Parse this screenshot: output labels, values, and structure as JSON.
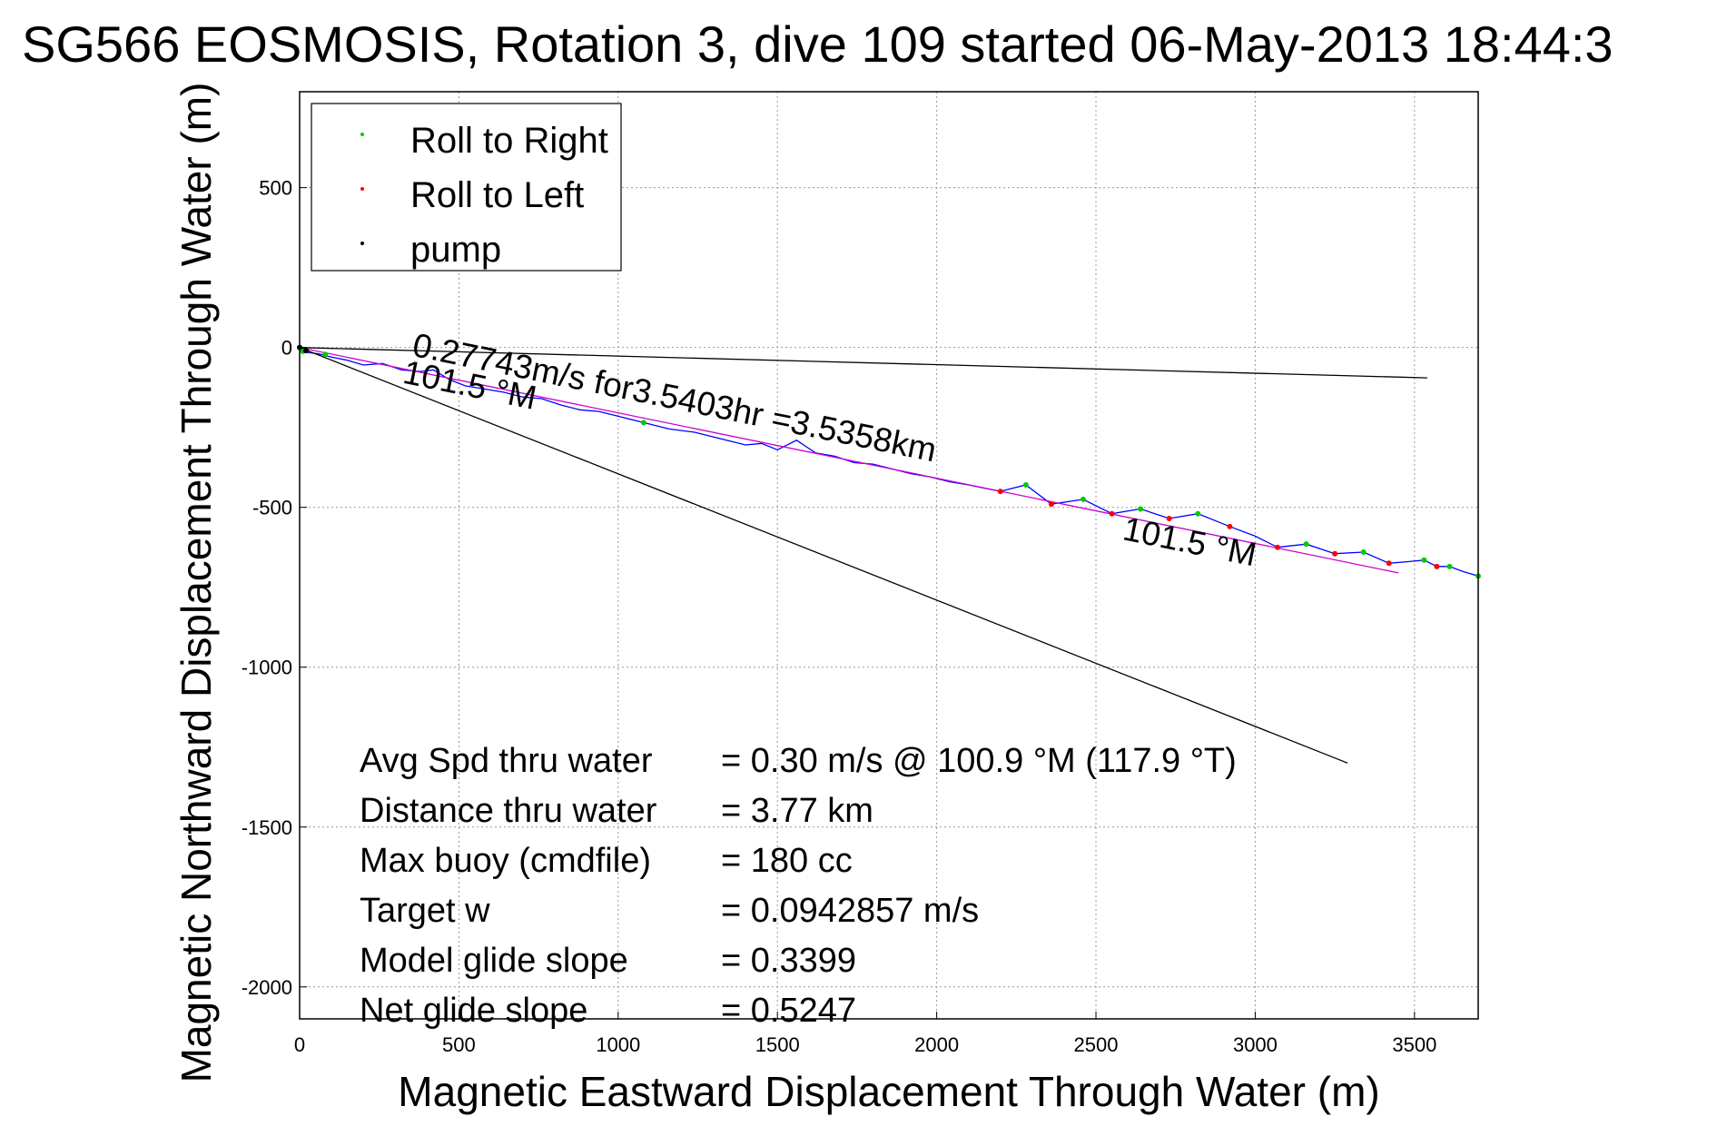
{
  "chart_data": {
    "type": "line",
    "title": "SG566 EOSMOSIS, Rotation 3, dive 109 started 06-May-2013 18:44:3",
    "xlabel": "Magnetic Eastward Displacement Through Water (m)",
    "ylabel": "Magnetic Northward Displacement Through Water (m)",
    "xlim": [
      0,
      3700
    ],
    "ylim": [
      -2100,
      800
    ],
    "xticks": [
      0,
      500,
      1000,
      1500,
      2000,
      2500,
      3000,
      3500
    ],
    "yticks": [
      500,
      0,
      -500,
      -1000,
      -1500,
      -2000
    ],
    "xtick_labels": [
      "0",
      "500",
      "1000",
      "1500",
      "2000",
      "2500",
      "3000",
      "3500"
    ],
    "ytick_labels": [
      "500",
      "0",
      "-500",
      "-1000",
      "-1500",
      "-2000"
    ],
    "grid": true,
    "legend": {
      "position": "top-left",
      "entries": [
        {
          "label": "Roll to Right",
          "color": "#00cc00"
        },
        {
          "label": "Roll to Left",
          "color": "#ff0000"
        },
        {
          "label": "pump",
          "color": "#000000"
        }
      ]
    },
    "series": [
      {
        "color": "#0000ff",
        "x": [
          0,
          20,
          60,
          100,
          150,
          200,
          260,
          320,
          380,
          420,
          470,
          520,
          580,
          640,
          700,
          760,
          820,
          880,
          940,
          1000,
          1080,
          1160,
          1240,
          1320,
          1400,
          1450,
          1500,
          1560,
          1620,
          1680,
          1740,
          1800,
          1860,
          1920,
          1980,
          2040,
          2100,
          2150,
          2200,
          2280,
          2360,
          2460,
          2550,
          2640,
          2730,
          2820,
          2920,
          3000,
          3070,
          3160,
          3250,
          3340,
          3420,
          3480,
          3530,
          3570,
          3610,
          3650,
          3700
        ],
        "y": [
          0,
          -15,
          -20,
          -30,
          -40,
          -55,
          -50,
          -70,
          -75,
          -70,
          -100,
          -120,
          -130,
          -140,
          -155,
          -160,
          -180,
          -195,
          -200,
          -215,
          -235,
          -255,
          -265,
          -285,
          -305,
          -300,
          -320,
          -290,
          -330,
          -340,
          -360,
          -365,
          -380,
          -395,
          -405,
          -420,
          -430,
          -440,
          -450,
          -430,
          -490,
          -475,
          -520,
          -505,
          -535,
          -520,
          -560,
          -590,
          -625,
          -615,
          -645,
          -640,
          -675,
          -670,
          -665,
          -685,
          -685,
          -700,
          -715
        ]
      },
      {
        "color": "#cc00cc",
        "x": [
          0,
          3450
        ],
        "y": [
          0,
          -705
        ]
      },
      {
        "color": "#000000",
        "x": [
          0,
          3540
        ],
        "y": [
          0,
          -95
        ]
      },
      {
        "color": "#000000",
        "x": [
          0,
          3290
        ],
        "y": [
          0,
          -1300
        ]
      }
    ],
    "points": [
      {
        "kind": "roll-right",
        "color": "#00cc00",
        "x": [
          10,
          80,
          1080,
          2280,
          2460,
          2640,
          2820,
          3160,
          3340,
          3530,
          3610,
          3700
        ],
        "y": [
          -12,
          -22,
          -235,
          -430,
          -475,
          -505,
          -520,
          -615,
          -640,
          -665,
          -685,
          -715
        ]
      },
      {
        "kind": "roll-left",
        "color": "#ff0000",
        "x": [
          2200,
          2360,
          2550,
          2730,
          2920,
          3070,
          3250,
          3420,
          3570
        ],
        "y": [
          -450,
          -490,
          -520,
          -535,
          -560,
          -625,
          -645,
          -675,
          -685
        ]
      },
      {
        "kind": "pump",
        "color": "#000000",
        "x": [
          0,
          20
        ],
        "y": [
          0,
          -10
        ]
      }
    ],
    "annotations": [
      {
        "text": "0.27743m/s for3.5403hr =3.5358km",
        "x": 350,
        "y": -25,
        "rotation_deg": 11.5
      },
      {
        "text": "101.5 °M",
        "x": 320,
        "y": -110,
        "rotation_deg": 11.5
      },
      {
        "text": "101.5 °M",
        "x": 2580,
        "y": -600,
        "rotation_deg": 11.5
      }
    ],
    "stats": [
      {
        "label": "Avg Spd thru water",
        "value": "=  0.30 m/s @ 100.9 °M (117.9 °T)"
      },
      {
        "label": "Distance thru water",
        "value": "=  3.77 km"
      },
      {
        "label": "Max buoy (cmdfile)",
        "value": "= 180 cc"
      },
      {
        "label": "Target w",
        "value": "= 0.0942857 m/s"
      },
      {
        "label": "Model glide slope",
        "value": "= 0.3399"
      },
      {
        "label": "Net glide slope",
        "value": "= 0.5247"
      }
    ]
  }
}
